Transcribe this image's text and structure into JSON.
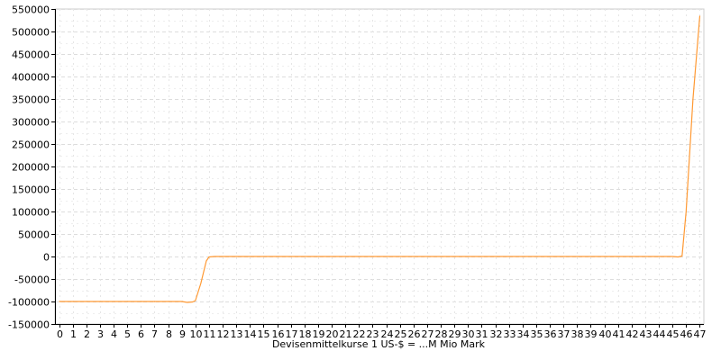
{
  "chart_data": {
    "type": "line",
    "xlabel": "Devisenmittelkurse 1 US-$ = ...M Mio Mark",
    "ylabel": "",
    "x": [
      0,
      1,
      2,
      3,
      4,
      5,
      6,
      7,
      8,
      9,
      10,
      11,
      12,
      13,
      14,
      15,
      16,
      17,
      18,
      19,
      20,
      21,
      22,
      23,
      24,
      25,
      26,
      27,
      28,
      29,
      30,
      31,
      32,
      33,
      34,
      35,
      36,
      37,
      38,
      39,
      40,
      41,
      42,
      43,
      44,
      45,
      46,
      47
    ],
    "xticks": [
      "0",
      "1",
      "2",
      "3",
      "4",
      "5",
      "6",
      "7",
      "8",
      "9",
      "10",
      "11",
      "12",
      "13",
      "14",
      "15",
      "16",
      "17",
      "18",
      "19",
      "20",
      "21",
      "22",
      "23",
      "24",
      "25",
      "26",
      "27",
      "28",
      "29",
      "30",
      "31",
      "32",
      "33",
      "34",
      "35",
      "36",
      "37",
      "38",
      "39",
      "40",
      "41",
      "42",
      "43",
      "44",
      "45",
      "46",
      "47"
    ],
    "yticks": [
      -150000,
      -100000,
      -50000,
      0,
      50000,
      100000,
      150000,
      200000,
      250000,
      300000,
      350000,
      400000,
      450000,
      500000,
      550000
    ],
    "xlim": [
      -0.3,
      47.3
    ],
    "ylim": [
      -150000,
      550000
    ],
    "grid": true,
    "legend": "none",
    "series": [
      {
        "color": "#ff9933",
        "points": [
          [
            0,
            -100000
          ],
          [
            1,
            -100000
          ],
          [
            2,
            -100000
          ],
          [
            3,
            -100000
          ],
          [
            4,
            -100000
          ],
          [
            5,
            -100000
          ],
          [
            6,
            -100000
          ],
          [
            7,
            -100000
          ],
          [
            8,
            -100000
          ],
          [
            9,
            -100000
          ],
          [
            9.4,
            -102000
          ],
          [
            9.8,
            -101000
          ],
          [
            10,
            -98000
          ],
          [
            10.4,
            -60000
          ],
          [
            10.8,
            -10000
          ],
          [
            11,
            -1000
          ],
          [
            11.4,
            0
          ],
          [
            12,
            0
          ],
          [
            13,
            0
          ],
          [
            14,
            0
          ],
          [
            15,
            0
          ],
          [
            16,
            0
          ],
          [
            17,
            0
          ],
          [
            18,
            0
          ],
          [
            19,
            0
          ],
          [
            20,
            0
          ],
          [
            21,
            0
          ],
          [
            22,
            0
          ],
          [
            23,
            0
          ],
          [
            24,
            0
          ],
          [
            25,
            0
          ],
          [
            26,
            0
          ],
          [
            27,
            0
          ],
          [
            28,
            0
          ],
          [
            29,
            0
          ],
          [
            30,
            0
          ],
          [
            31,
            0
          ],
          [
            32,
            0
          ],
          [
            33,
            0
          ],
          [
            34,
            0
          ],
          [
            35,
            0
          ],
          [
            36,
            0
          ],
          [
            37,
            0
          ],
          [
            38,
            0
          ],
          [
            39,
            0
          ],
          [
            40,
            0
          ],
          [
            41,
            0
          ],
          [
            42,
            0
          ],
          [
            43,
            0
          ],
          [
            44,
            0
          ],
          [
            45,
            0
          ],
          [
            45.4,
            -1000
          ],
          [
            45.7,
            1000
          ],
          [
            46,
            100000
          ],
          [
            46.5,
            350000
          ],
          [
            47,
            535000
          ]
        ]
      }
    ]
  }
}
